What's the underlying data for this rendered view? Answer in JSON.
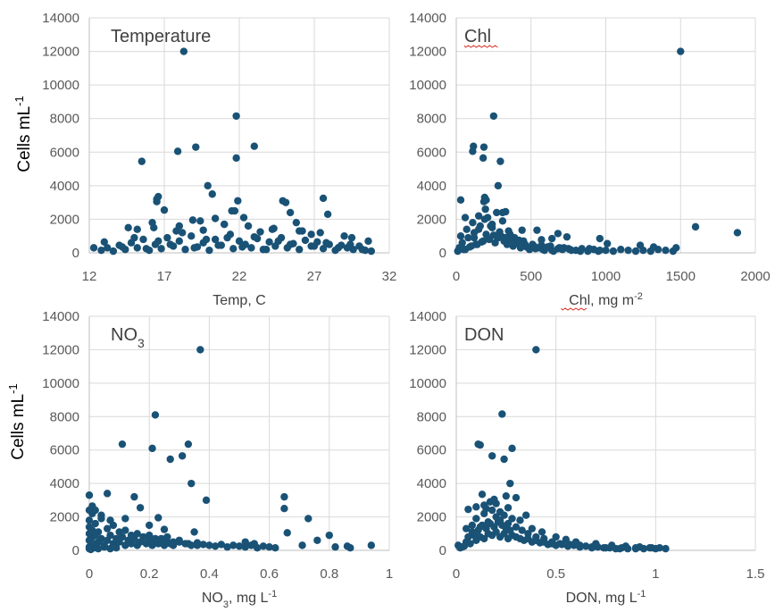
{
  "chart_data": [
    {
      "type": "scatter",
      "id": "temp",
      "title": "Temperature",
      "xlabel": [
        {
          "t": "Temp, C"
        }
      ],
      "ylabel": "Cells mL",
      "ylabel_sup": "-1",
      "xlim": [
        12,
        32
      ],
      "xticks": [
        12,
        17,
        22,
        27,
        32
      ],
      "ylim": [
        0,
        14000
      ],
      "yticks": [
        0,
        2000,
        4000,
        6000,
        8000,
        10000,
        12000,
        14000
      ],
      "grid": true,
      "marker_color": "#1a5276",
      "x": [
        12.8,
        13.2,
        13.6,
        14.0,
        14.4,
        14.8,
        15.2,
        15.6,
        16.0,
        16.4,
        16.8,
        17.2,
        17.6,
        18.0,
        18.4,
        18.8,
        19.2,
        19.6,
        20.0,
        20.4,
        20.8,
        21.2,
        21.6,
        22.0,
        22.4,
        22.8,
        23.2,
        23.6,
        24.0,
        24.4,
        24.8,
        25.2,
        25.6,
        26.0,
        26.4,
        26.8,
        27.2,
        27.6,
        28.0,
        28.4,
        28.8,
        29.2,
        29.6,
        30.0,
        30.4,
        30.8,
        13.0,
        14.2,
        15.0,
        15.8,
        16.6,
        17.4,
        18.2,
        19.0,
        19.8,
        20.6,
        21.4,
        22.2,
        23.0,
        23.8,
        24.6,
        25.4,
        26.2,
        27.0,
        27.8,
        28.6,
        29.4,
        30.2,
        14.6,
        16.2,
        17.8,
        19.4,
        21.0,
        22.6,
        24.2,
        25.8,
        27.4,
        29.0,
        12.3,
        15.5,
        16.5,
        17.9,
        18.3,
        19.1,
        19.9,
        20.2,
        21.8,
        21.8,
        21.9,
        23.0,
        21.7,
        21.5,
        16.6,
        16.5,
        17.0,
        18.9,
        20.4,
        22.3,
        24.9,
        25.1,
        27.6,
        25.4,
        27.9,
        15.2,
        16.3,
        18.0,
        19.6,
        21.0,
        23.4,
        24.3,
        26.0,
        26.8,
        29.5,
        30.6
      ],
      "y": [
        150,
        300,
        100,
        450,
        200,
        600,
        300,
        800,
        150,
        500,
        250,
        900,
        400,
        700,
        200,
        1000,
        350,
        600,
        150,
        800,
        450,
        900,
        250,
        700,
        500,
        300,
        850,
        200,
        650,
        400,
        900,
        300,
        550,
        200,
        750,
        400,
        650,
        250,
        500,
        150,
        450,
        300,
        200,
        400,
        150,
        100,
        650,
        350,
        900,
        250,
        700,
        500,
        1200,
        300,
        800,
        450,
        1100,
        350,
        950,
        200,
        700,
        500,
        1300,
        400,
        600,
        300,
        500,
        200,
        1500,
        1800,
        1300,
        1900,
        1700,
        1600,
        1400,
        1800,
        1200,
        1000,
        300,
        5450,
        3200,
        6050,
        12000,
        6300,
        4000,
        3500,
        8150,
        5650,
        3100,
        6350,
        2500,
        2500,
        3350,
        3050,
        2550,
        1950,
        2050,
        2100,
        3100,
        3000,
        3250,
        2400,
        2300,
        1400,
        1500,
        1600,
        1350,
        1700,
        1250,
        1450,
        1300,
        1100,
        900,
        700
      ],
      "ann_side": "left"
    },
    {
      "type": "scatter",
      "id": "chl",
      "title": "Chl",
      "xlabel": [
        {
          "t": "Chl"
        },
        {
          "t": ", mg m"
        },
        {
          "t": "-2",
          "sup": true
        }
      ],
      "ylabel": "",
      "xlim": [
        0,
        2000
      ],
      "xticks": [
        0,
        500,
        1000,
        1500,
        2000
      ],
      "ylim": [
        0,
        14000
      ],
      "yticks": [
        0,
        2000,
        4000,
        6000,
        8000,
        10000,
        12000,
        14000
      ],
      "grid": true,
      "marker_color": "#1a5276",
      "x": [
        20,
        40,
        60,
        80,
        100,
        120,
        140,
        160,
        180,
        200,
        220,
        240,
        260,
        280,
        300,
        320,
        340,
        360,
        380,
        400,
        430,
        460,
        490,
        520,
        550,
        580,
        610,
        640,
        680,
        720,
        760,
        800,
        840,
        880,
        920,
        960,
        30,
        70,
        110,
        150,
        190,
        230,
        270,
        310,
        350,
        390,
        450,
        510,
        570,
        630,
        690,
        750,
        10,
        50,
        90,
        130,
        170,
        210,
        250,
        290,
        330,
        370,
        410,
        470,
        530,
        590,
        650,
        710,
        770,
        830,
        890,
        950,
        1000,
        1050,
        1100,
        1150,
        1200,
        1250,
        1300,
        1350,
        1400,
        1450,
        1500,
        185,
        110,
        115,
        180,
        250,
        295,
        280,
        190,
        185,
        200,
        195,
        330,
        310,
        440,
        570,
        1880,
        1600,
        960,
        1230,
        1320,
        1470,
        1010,
        740,
        680,
        640,
        540,
        420,
        360,
        240,
        210,
        150,
        120,
        60,
        30
      ],
      "y": [
        300,
        600,
        200,
        900,
        400,
        1200,
        500,
        1600,
        700,
        1100,
        800,
        1500,
        600,
        900,
        1000,
        700,
        500,
        800,
        400,
        600,
        300,
        500,
        200,
        400,
        300,
        200,
        350,
        150,
        250,
        300,
        200,
        150,
        250,
        100,
        200,
        150,
        1000,
        1400,
        1800,
        2200,
        2000,
        1600,
        2400,
        1900,
        1300,
        900,
        700,
        500,
        450,
        400,
        300,
        250,
        100,
        200,
        350,
        500,
        650,
        850,
        1050,
        1250,
        900,
        700,
        550,
        350,
        250,
        150,
        100,
        200,
        150,
        100,
        250,
        100,
        150,
        100,
        200,
        150,
        100,
        150,
        100,
        200,
        150,
        100,
        12000,
        6300,
        6050,
        6350,
        5650,
        8150,
        5450,
        4000,
        3300,
        3050,
        3150,
        2600,
        2450,
        2400,
        1350,
        780,
        1200,
        1550,
        850,
        450,
        350,
        300,
        550,
        950,
        1150,
        850,
        1350,
        750,
        1100,
        1700,
        2100,
        1400,
        900,
        2100,
        3150
      ],
      "ann_side": "left"
    },
    {
      "type": "scatter",
      "id": "no3",
      "title": "NO",
      "title_sub": "3",
      "xlabel": [
        {
          "t": "NO"
        },
        {
          "t": "3",
          "sub": true
        },
        {
          "t": ", mg L"
        },
        {
          "t": "-1",
          "sup": true
        }
      ],
      "ylabel": "Cells mL",
      "ylabel_sup": "-1",
      "xlim": [
        0,
        1
      ],
      "xticks": [
        0,
        0.2,
        0.4,
        0.6,
        0.8,
        1
      ],
      "ylim": [
        0,
        14000
      ],
      "yticks": [
        0,
        2000,
        4000,
        6000,
        8000,
        10000,
        12000,
        14000
      ],
      "grid": true,
      "marker_color": "#1a5276",
      "x": [
        0.0,
        0.0,
        0.0,
        0.0,
        0.01,
        0.01,
        0.01,
        0.02,
        0.02,
        0.03,
        0.03,
        0.04,
        0.05,
        0.06,
        0.07,
        0.08,
        0.09,
        0.1,
        0.11,
        0.12,
        0.13,
        0.14,
        0.15,
        0.16,
        0.17,
        0.18,
        0.19,
        0.2,
        0.21,
        0.22,
        0.23,
        0.24,
        0.25,
        0.26,
        0.27,
        0.28,
        0.3,
        0.32,
        0.34,
        0.36,
        0.38,
        0.4,
        0.42,
        0.44,
        0.46,
        0.48,
        0.5,
        0.52,
        0.54,
        0.56,
        0.58,
        0.6,
        0.62,
        0.0,
        0.01,
        0.02,
        0.04,
        0.06,
        0.08,
        0.1,
        0.12,
        0.14,
        0.16,
        0.18,
        0.2,
        0.22,
        0.24,
        0.26,
        0.28,
        0.3,
        0.33,
        0.36,
        0.0,
        0.005,
        0.015,
        0.03,
        0.05,
        0.07,
        0.09,
        0.37,
        0.22,
        0.11,
        0.21,
        0.33,
        0.31,
        0.27,
        0.34,
        0.39,
        0.0,
        0.0,
        0.06,
        0.15,
        0.17,
        0.23,
        0.65,
        0.65,
        0.73,
        0.66,
        0.8,
        0.76,
        0.71,
        0.86,
        0.87,
        0.94,
        0.82,
        0.52,
        0.55,
        0.01,
        0.02,
        0.04,
        0.07,
        0.12,
        0.2,
        0.25,
        0.35
      ],
      "y": [
        200,
        600,
        1000,
        1400,
        300,
        800,
        1200,
        400,
        900,
        500,
        1100,
        700,
        300,
        600,
        900,
        400,
        700,
        500,
        800,
        300,
        600,
        400,
        700,
        300,
        500,
        800,
        400,
        600,
        300,
        500,
        400,
        700,
        300,
        500,
        400,
        300,
        500,
        400,
        300,
        450,
        350,
        300,
        250,
        350,
        200,
        300,
        250,
        200,
        300,
        150,
        250,
        200,
        150,
        1800,
        2200,
        1600,
        1900,
        1300,
        1500,
        1100,
        1200,
        900,
        1000,
        800,
        900,
        700,
        600,
        800,
        500,
        600,
        400,
        300,
        100,
        50,
        150,
        100,
        200,
        100,
        150,
        12000,
        8100,
        6350,
        6100,
        6350,
        5650,
        5450,
        4000,
        3000,
        3300,
        2400,
        3400,
        3200,
        2550,
        1950,
        3200,
        2500,
        1900,
        1050,
        900,
        600,
        300,
        250,
        150,
        300,
        200,
        500,
        400,
        2650,
        2400,
        2100,
        1800,
        1900,
        1500,
        1250,
        1100
      ],
      "ann_side": "left"
    },
    {
      "type": "scatter",
      "id": "don",
      "title": "DON",
      "xlabel": [
        {
          "t": "DON, mg L"
        },
        {
          "t": "-1",
          "sup": true
        }
      ],
      "ylabel": "",
      "xlim": [
        0,
        1.5
      ],
      "xticks": [
        0,
        0.5,
        1,
        1.5
      ],
      "ylim": [
        0,
        14000
      ],
      "yticks": [
        0,
        2000,
        4000,
        6000,
        8000,
        10000,
        12000,
        14000
      ],
      "grid": true,
      "marker_color": "#1a5276",
      "x": [
        0.01,
        0.03,
        0.05,
        0.07,
        0.09,
        0.1,
        0.11,
        0.12,
        0.13,
        0.14,
        0.15,
        0.16,
        0.17,
        0.18,
        0.19,
        0.2,
        0.21,
        0.22,
        0.23,
        0.24,
        0.25,
        0.26,
        0.27,
        0.28,
        0.3,
        0.32,
        0.34,
        0.36,
        0.38,
        0.4,
        0.42,
        0.44,
        0.46,
        0.48,
        0.5,
        0.53,
        0.56,
        0.59,
        0.62,
        0.65,
        0.68,
        0.71,
        0.74,
        0.77,
        0.8,
        0.83,
        0.86,
        0.9,
        0.94,
        0.98,
        1.0,
        1.02,
        1.05,
        0.06,
        0.08,
        0.1,
        0.12,
        0.14,
        0.16,
        0.18,
        0.2,
        0.22,
        0.24,
        0.26,
        0.28,
        0.3,
        0.33,
        0.36,
        0.4,
        0.44,
        0.48,
        0.52,
        0.57,
        0.62,
        0.68,
        0.75,
        0.82,
        0.9,
        0.4,
        0.23,
        0.11,
        0.12,
        0.28,
        0.24,
        0.18,
        0.27,
        0.25,
        0.13,
        0.3,
        0.06,
        0.1,
        0.2,
        0.17,
        0.22,
        0.35,
        0.08,
        0.05,
        0.15,
        0.32,
        0.38,
        0.43,
        0.5,
        0.55,
        0.6,
        0.7,
        0.78,
        0.85,
        0.92,
        0.97,
        0.02,
        0.04,
        0.14,
        0.26,
        0.19
      ],
      "y": [
        300,
        200,
        500,
        400,
        900,
        600,
        1200,
        800,
        1500,
        700,
        1300,
        1000,
        1600,
        900,
        1400,
        1100,
        1700,
        800,
        1500,
        1000,
        1300,
        700,
        1200,
        900,
        800,
        700,
        600,
        700,
        500,
        600,
        450,
        500,
        350,
        400,
        300,
        350,
        250,
        300,
        200,
        250,
        150,
        200,
        150,
        150,
        100,
        150,
        100,
        150,
        100,
        150,
        100,
        150,
        100,
        800,
        1100,
        1900,
        1400,
        2200,
        1700,
        2400,
        2000,
        1800,
        2100,
        1600,
        1900,
        1400,
        1200,
        1000,
        800,
        700,
        500,
        400,
        350,
        300,
        200,
        150,
        100,
        100,
        12000,
        8150,
        6350,
        6300,
        6100,
        5450,
        5650,
        4000,
        3250,
        3350,
        3150,
        2450,
        2600,
        2800,
        2900,
        2300,
        2100,
        1500,
        1300,
        2500,
        1800,
        1300,
        1100,
        800,
        650,
        500,
        400,
        300,
        250,
        200,
        150,
        150,
        250,
        2700,
        2550,
        3050
      ],
      "ann_side": "left"
    }
  ]
}
